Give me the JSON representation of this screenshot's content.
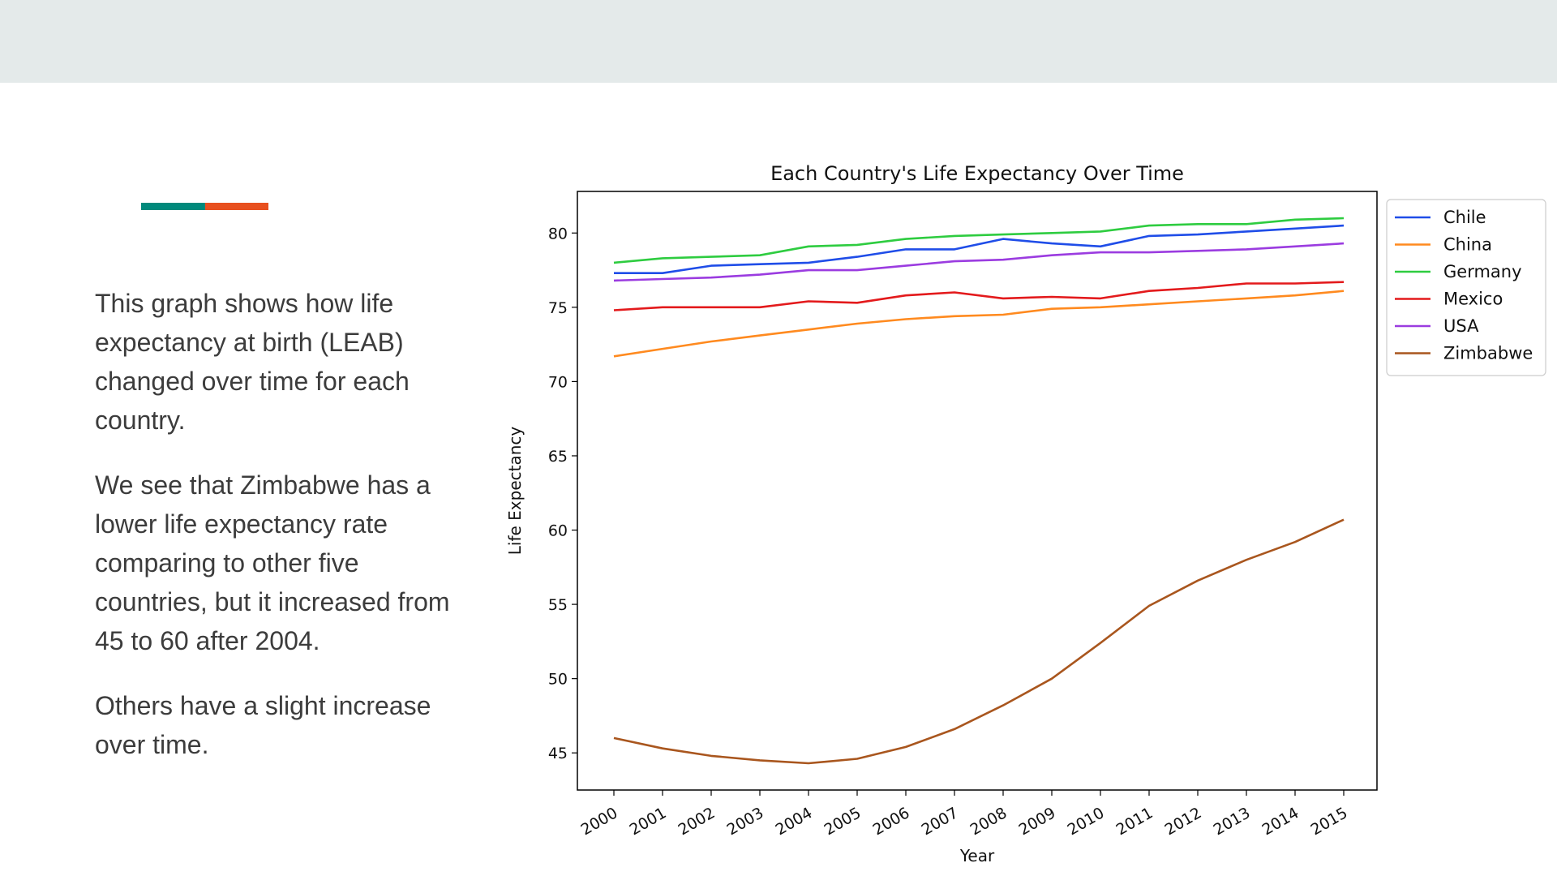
{
  "slide": {
    "paragraphs": [
      "This graph shows how life expectancy at birth (LEAB) changed over time for each country.",
      "We see that Zimbabwe has a lower life expectancy rate comparing to other five countries, but it increased from 45 to 60 after 2004.",
      "Others have a slight increase over time."
    ],
    "colors": {
      "band": "#e4eaea",
      "accent_teal": "#00897b",
      "accent_orange": "#e8501f"
    }
  },
  "chart_data": {
    "type": "line",
    "title": "Each Country's Life Expectancy Over Time",
    "xlabel": "Year",
    "ylabel": "Life Expectancy",
    "x": [
      "2000",
      "2001",
      "2002",
      "2003",
      "2004",
      "2005",
      "2006",
      "2007",
      "2008",
      "2009",
      "2010",
      "2011",
      "2012",
      "2013",
      "2014",
      "2015"
    ],
    "yticks": [
      45,
      50,
      55,
      60,
      65,
      70,
      75,
      80
    ],
    "ylim": [
      42.5,
      82.8
    ],
    "grid": false,
    "legend_position": "outside-right",
    "series": [
      {
        "name": "Chile",
        "color": "#1f4de8",
        "values": [
          77.3,
          77.3,
          77.8,
          77.9,
          78.0,
          78.4,
          78.9,
          78.9,
          79.6,
          79.3,
          79.1,
          79.8,
          79.9,
          80.1,
          80.3,
          80.5
        ]
      },
      {
        "name": "China",
        "color": "#ff8a1f",
        "values": [
          71.7,
          72.2,
          72.7,
          73.1,
          73.5,
          73.9,
          74.2,
          74.4,
          74.5,
          74.9,
          75.0,
          75.2,
          75.4,
          75.6,
          75.8,
          76.1
        ]
      },
      {
        "name": "Germany",
        "color": "#2ecc40",
        "values": [
          78.0,
          78.3,
          78.4,
          78.5,
          79.1,
          79.2,
          79.6,
          79.8,
          79.9,
          80.0,
          80.1,
          80.5,
          80.6,
          80.6,
          80.9,
          81.0
        ]
      },
      {
        "name": "Mexico",
        "color": "#e31a1c",
        "values": [
          74.8,
          75.0,
          75.0,
          75.0,
          75.4,
          75.3,
          75.8,
          76.0,
          75.6,
          75.7,
          75.6,
          76.1,
          76.3,
          76.6,
          76.6,
          76.7
        ]
      },
      {
        "name": "USA",
        "color": "#9b3ce0",
        "values": [
          76.8,
          76.9,
          77.0,
          77.2,
          77.5,
          77.5,
          77.8,
          78.1,
          78.2,
          78.5,
          78.7,
          78.7,
          78.8,
          78.9,
          79.1,
          79.3
        ]
      },
      {
        "name": "Zimbabwe",
        "color": "#a9561e",
        "values": [
          46.0,
          45.3,
          44.8,
          44.5,
          44.3,
          44.6,
          45.4,
          46.6,
          48.2,
          50.0,
          52.4,
          54.9,
          56.6,
          58.0,
          59.2,
          60.7
        ]
      }
    ]
  }
}
